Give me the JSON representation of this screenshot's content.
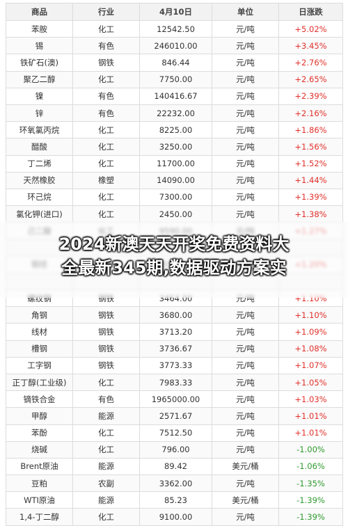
{
  "table": {
    "headers": [
      "商品",
      "行业",
      "4月10日",
      "单位",
      "日涨跌"
    ],
    "rows": [
      [
        "苯胺",
        "化工",
        "12542.50",
        "元/吨",
        "+5.02%"
      ],
      [
        "锡",
        "有色",
        "246010.00",
        "元/吨",
        "+3.45%"
      ],
      [
        "铁矿石(澳)",
        "钢铁",
        "846.44",
        "元/吨",
        "+2.76%"
      ],
      [
        "聚乙二醇",
        "化工",
        "7750.00",
        "元/吨",
        "+2.65%"
      ],
      [
        "镍",
        "有色",
        "140416.67",
        "元/吨",
        "+2.39%"
      ],
      [
        "锌",
        "有色",
        "22232.00",
        "元/吨",
        "+2.16%"
      ],
      [
        "环氧氯丙烷",
        "化工",
        "8225.00",
        "元/吨",
        "+1.86%"
      ],
      [
        "醋酸",
        "化工",
        "3250.00",
        "元/吨",
        "+1.56%"
      ],
      [
        "丁二烯",
        "化工",
        "11700.00",
        "元/吨",
        "+1.52%"
      ],
      [
        "天然橡胶",
        "橡塑",
        "14090.00",
        "元/吨",
        "+1.44%"
      ],
      [
        "环己烷",
        "化工",
        "7300.00",
        "元/吨",
        "+1.39%"
      ],
      [
        "氯化钾(进口)",
        "化工",
        "2450.00",
        "元/吨",
        "+1.38%"
      ],
      [
        "己二酸",
        "化工",
        "9590.00",
        "元/吨",
        "+1.27%"
      ],
      [
        "",
        "",
        "",
        "",
        ""
      ],
      [
        "铜坯",
        "钢铁",
        "33380.00",
        "元/吨",
        "+1.20%"
      ],
      [
        "",
        "",
        "",
        "",
        ""
      ],
      [
        "螺纹钢",
        "钢铁",
        "3464.00",
        "元/吨",
        "+1.10%"
      ],
      [
        "角钢",
        "钢铁",
        "3680.00",
        "元/吨",
        "+1.10%"
      ],
      [
        "线材",
        "钢铁",
        "3713.20",
        "元/吨",
        "+1.09%"
      ],
      [
        "槽钢",
        "钢铁",
        "3736.67",
        "元/吨",
        "+1.08%"
      ],
      [
        "工字钢",
        "钢铁",
        "3773.33",
        "元/吨",
        "+1.07%"
      ],
      [
        "正丁醇(工业级)",
        "化工",
        "7983.33",
        "元/吨",
        "+1.05%"
      ],
      [
        "镝铁合金",
        "有色",
        "1965000.00",
        "元/吨",
        "+1.03%"
      ],
      [
        "甲醇",
        "能源",
        "2571.67",
        "元/吨",
        "+1.01%"
      ],
      [
        "苯酚",
        "化工",
        "7512.50",
        "元/吨",
        "+1.01%"
      ],
      [
        "烧碱",
        "化工",
        "796.00",
        "元/吨",
        "-1.00%"
      ],
      [
        "Brent原油",
        "能源",
        "89.42",
        "美元/桶",
        "-1.06%"
      ],
      [
        "豆粕",
        "农副",
        "3362.00",
        "元/吨",
        "-1.35%"
      ],
      [
        "WTI原油",
        "能源",
        "85.23",
        "美元/桶",
        "-1.39%"
      ],
      [
        "1,4-丁二醇",
        "化工",
        "9100.00",
        "元/吨",
        "-1.39%"
      ]
    ]
  },
  "overlay": {
    "line1": "2024新澳天天开奖免费资料大",
    "line2": "全最新345期,数据驱动方案实"
  },
  "colors": {
    "up": "#e0302a",
    "down": "#2f9a2f",
    "header_bg": "#f2f2f2"
  }
}
